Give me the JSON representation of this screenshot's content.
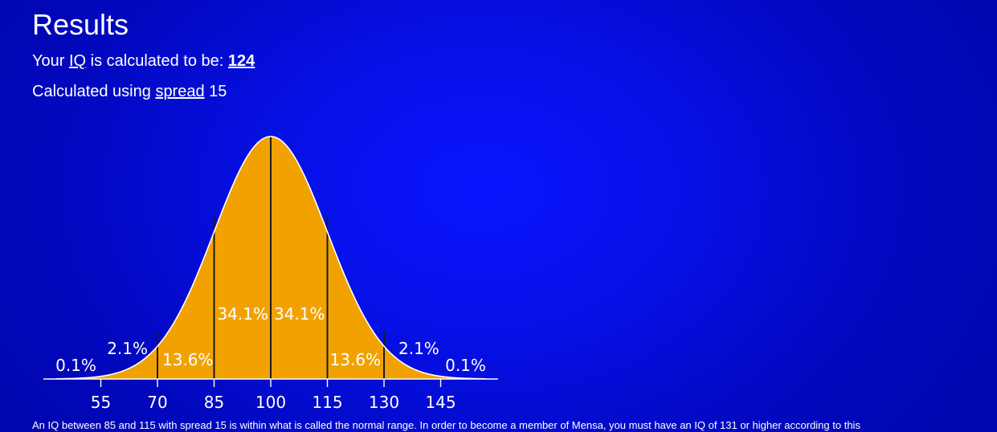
{
  "results": {
    "title": "Results",
    "iq_prefix": "Your ",
    "iq_link": "IQ",
    "iq_middle": " is calculated to be: ",
    "iq_value": "124",
    "spread_prefix": "Calculated using ",
    "spread_link": "spread",
    "spread_value": "15"
  },
  "chart_data": {
    "type": "area",
    "title": "",
    "xlabel": "",
    "ylabel": "",
    "mean": 100,
    "sd": 15,
    "xlim": [
      40,
      160
    ],
    "x_ticks": [
      "55",
      "70",
      "85",
      "100",
      "115",
      "130",
      "145"
    ],
    "boundaries": [
      70,
      85,
      100,
      115,
      130
    ],
    "segments": [
      {
        "from": 40,
        "to": 55,
        "label": "0.1%",
        "value": 0.1
      },
      {
        "from": 55,
        "to": 70,
        "label": "2.1%",
        "value": 2.1
      },
      {
        "from": 70,
        "to": 85,
        "label": "13.6%",
        "value": 13.6
      },
      {
        "from": 85,
        "to": 100,
        "label": "34.1%",
        "value": 34.1
      },
      {
        "from": 100,
        "to": 115,
        "label": "34.1%",
        "value": 34.1
      },
      {
        "from": 115,
        "to": 130,
        "label": "13.6%",
        "value": 13.6
      },
      {
        "from": 130,
        "to": 145,
        "label": "2.1%",
        "value": 2.1
      },
      {
        "from": 145,
        "to": 160,
        "label": "0.1%",
        "value": 0.1
      }
    ],
    "fill_color": "#f2a200",
    "outline_color": "#ffffff",
    "divider_color": "#1a1a1a"
  },
  "note": {
    "text": "An IQ between 85 and 115 with spread 15 is within what is called the normal range. In order to become a member of Mensa, you must have an IQ of 131 or higher according to this"
  }
}
